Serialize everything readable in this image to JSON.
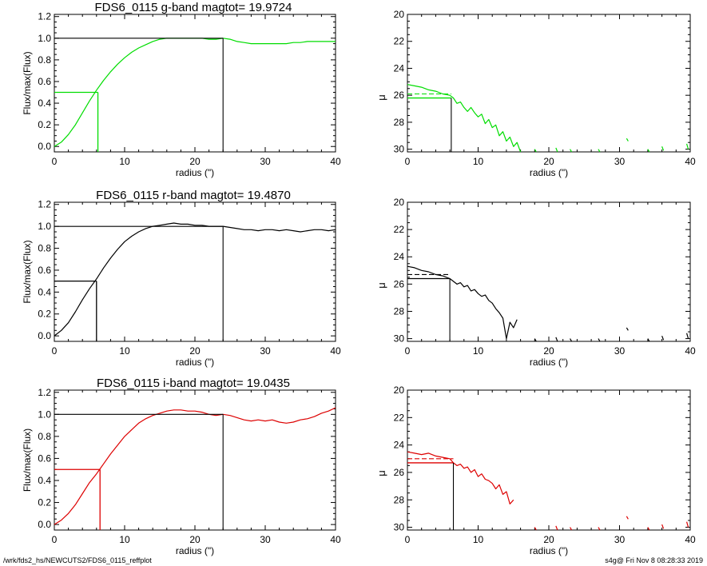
{
  "footer": {
    "path": "/wrk/fds2_hs/NEWCUTS2/FDS6_0115_reffplot",
    "stamp": "s4g@  Fri Nov  8 08:28:33 2019"
  },
  "colors": {
    "g": "#00dd00",
    "r": "#000000",
    "i": "#dd0000",
    "frame": "#000000"
  },
  "chart_data": [
    {
      "type": "line",
      "band": "g",
      "title": "FDS6_0115 g-band  magtot=     19.9724",
      "xlabel": "radius (\")",
      "ylabel": "Flux/max(Flux)",
      "xlim": [
        0,
        40
      ],
      "ylim": [
        -0.05,
        1.22
      ],
      "xticks": [
        "0",
        "10",
        "20",
        "30",
        "40"
      ],
      "yticks": [
        "0.0",
        "0.2",
        "0.4",
        "0.6",
        "0.8",
        "1.0",
        "1.2"
      ],
      "half_light_radius": 6.2,
      "total_radius": 24,
      "series": [
        {
          "x": [
            0,
            1,
            2,
            3,
            4,
            5,
            6,
            7,
            8,
            9,
            10,
            11,
            12,
            13,
            14,
            15,
            16,
            17,
            18,
            19,
            20,
            21,
            22,
            23,
            24,
            25,
            26,
            27,
            28,
            29,
            30,
            31,
            32,
            33,
            34,
            35,
            36,
            37,
            38,
            39,
            40
          ],
          "y": [
            0,
            0.04,
            0.11,
            0.2,
            0.31,
            0.42,
            0.52,
            0.61,
            0.69,
            0.76,
            0.82,
            0.87,
            0.91,
            0.94,
            0.97,
            0.99,
            1.0,
            1.0,
            1.0,
            1.0,
            1.0,
            1.0,
            0.99,
            0.99,
            1.0,
            0.99,
            0.97,
            0.96,
            0.95,
            0.95,
            0.95,
            0.95,
            0.95,
            0.95,
            0.96,
            0.96,
            0.97,
            0.97,
            0.97,
            0.97,
            0.97
          ]
        }
      ]
    },
    {
      "type": "line",
      "band": "g",
      "xlabel": "radius (\")",
      "ylabel": "μ",
      "xlim": [
        0,
        40
      ],
      "ylim": [
        30.2,
        20
      ],
      "inverted": true,
      "xticks": [
        "0",
        "10",
        "20",
        "30",
        "40"
      ],
      "yticks": [
        "20",
        "22",
        "24",
        "26",
        "28",
        "30"
      ],
      "half_light_radius": 6.2,
      "mu_eff": 26.2,
      "mu_mean": 25.9,
      "series": [
        {
          "x": [
            0,
            1,
            2,
            3,
            4,
            5,
            6,
            6.5,
            7,
            7.5,
            8,
            8.5,
            9,
            9.5,
            10,
            10.5,
            11,
            11.5,
            12,
            12.5,
            13,
            13.5,
            14,
            14.5,
            15,
            15.5,
            16
          ],
          "y": [
            25.2,
            25.3,
            25.4,
            25.6,
            25.7,
            25.9,
            26.0,
            26.2,
            26.6,
            26.5,
            26.9,
            27.2,
            26.9,
            27.3,
            27.6,
            27.4,
            28.1,
            27.8,
            28.4,
            28.2,
            29.0,
            28.7,
            29.4,
            29.1,
            29.8,
            29.5,
            30.2
          ]
        }
      ]
    },
    {
      "type": "line",
      "band": "r",
      "title": "FDS6_0115 r-band  magtot=     19.4870",
      "xlabel": "radius (\")",
      "ylabel": "Flux/max(Flux)",
      "xlim": [
        0,
        40
      ],
      "ylim": [
        -0.05,
        1.22
      ],
      "xticks": [
        "0",
        "10",
        "20",
        "30",
        "40"
      ],
      "yticks": [
        "0.0",
        "0.2",
        "0.4",
        "0.6",
        "0.8",
        "1.0",
        "1.2"
      ],
      "half_light_radius": 6.0,
      "total_radius": 24,
      "series": [
        {
          "x": [
            0,
            1,
            2,
            3,
            4,
            5,
            6,
            7,
            8,
            9,
            10,
            11,
            12,
            13,
            14,
            15,
            16,
            17,
            18,
            19,
            20,
            21,
            22,
            23,
            24,
            25,
            26,
            27,
            28,
            29,
            30,
            31,
            32,
            33,
            34,
            35,
            36,
            37,
            38,
            39,
            40
          ],
          "y": [
            0,
            0.05,
            0.12,
            0.22,
            0.33,
            0.43,
            0.52,
            0.62,
            0.71,
            0.79,
            0.86,
            0.91,
            0.95,
            0.98,
            1.0,
            1.01,
            1.02,
            1.03,
            1.02,
            1.02,
            1.01,
            1.01,
            1.0,
            1.0,
            1.0,
            0.99,
            0.98,
            0.97,
            0.97,
            0.96,
            0.97,
            0.97,
            0.96,
            0.97,
            0.96,
            0.95,
            0.96,
            0.97,
            0.97,
            0.96,
            0.97
          ]
        }
      ]
    },
    {
      "type": "line",
      "band": "r",
      "xlabel": "radius (\")",
      "ylabel": "μ",
      "xlim": [
        0,
        40
      ],
      "ylim": [
        30.2,
        20
      ],
      "inverted": true,
      "xticks": [
        "0",
        "10",
        "20",
        "30",
        "40"
      ],
      "yticks": [
        "20",
        "22",
        "24",
        "26",
        "28",
        "30"
      ],
      "half_light_radius": 6.0,
      "mu_eff": 25.6,
      "mu_mean": 25.3,
      "series": [
        {
          "x": [
            0,
            1,
            2,
            3,
            4,
            5,
            6,
            6.5,
            7,
            7.5,
            8,
            8.5,
            9,
            9.5,
            10,
            10.5,
            11,
            11.5,
            12,
            12.5,
            13,
            13.5,
            14,
            14.5,
            15,
            15.5
          ],
          "y": [
            24.7,
            24.8,
            25.0,
            25.1,
            25.3,
            25.4,
            25.6,
            25.8,
            26.0,
            25.9,
            26.2,
            26.1,
            26.5,
            26.4,
            26.7,
            26.9,
            26.8,
            27.2,
            27.4,
            27.8,
            28.1,
            28.5,
            30.0,
            28.8,
            29.2,
            28.6
          ]
        }
      ]
    },
    {
      "type": "line",
      "band": "i",
      "title": "FDS6_0115 i-band  magtot=     19.0435",
      "xlabel": "radius (\")",
      "ylabel": "Flux/max(Flux)",
      "xlim": [
        0,
        40
      ],
      "ylim": [
        -0.05,
        1.22
      ],
      "xticks": [
        "0",
        "10",
        "20",
        "30",
        "40"
      ],
      "yticks": [
        "0.0",
        "0.2",
        "0.4",
        "0.6",
        "0.8",
        "1.0",
        "1.2"
      ],
      "half_light_radius": 6.5,
      "total_radius": 24,
      "series": [
        {
          "x": [
            0,
            1,
            2,
            3,
            4,
            5,
            6,
            7,
            8,
            9,
            10,
            11,
            12,
            13,
            14,
            15,
            16,
            17,
            18,
            19,
            20,
            21,
            22,
            23,
            24,
            25,
            26,
            27,
            28,
            29,
            30,
            31,
            32,
            33,
            34,
            35,
            36,
            37,
            38,
            39,
            40
          ],
          "y": [
            0,
            0.04,
            0.1,
            0.18,
            0.28,
            0.38,
            0.46,
            0.55,
            0.64,
            0.72,
            0.8,
            0.86,
            0.92,
            0.96,
            0.99,
            1.01,
            1.03,
            1.04,
            1.04,
            1.03,
            1.03,
            1.02,
            1.0,
            0.99,
            1.0,
            0.99,
            0.97,
            0.95,
            0.94,
            0.95,
            0.94,
            0.95,
            0.93,
            0.92,
            0.93,
            0.95,
            0.96,
            0.98,
            1.01,
            1.03,
            1.06
          ]
        }
      ]
    },
    {
      "type": "line",
      "band": "i",
      "xlabel": "radius (\")",
      "ylabel": "μ",
      "xlim": [
        0,
        40
      ],
      "ylim": [
        30.2,
        20
      ],
      "inverted": true,
      "xticks": [
        "0",
        "10",
        "20",
        "30",
        "40"
      ],
      "yticks": [
        "20",
        "22",
        "24",
        "26",
        "28",
        "30"
      ],
      "half_light_radius": 6.5,
      "mu_eff": 25.3,
      "mu_mean": 25.0,
      "series": [
        {
          "x": [
            0,
            1,
            2,
            3,
            4,
            5,
            6,
            6.5,
            7,
            7.5,
            8,
            8.5,
            9,
            9.5,
            10,
            10.5,
            11,
            11.5,
            12,
            12.5,
            13,
            13.5,
            14,
            14.5,
            15
          ],
          "y": [
            24.5,
            24.6,
            24.7,
            24.6,
            24.8,
            24.9,
            25.0,
            25.3,
            25.5,
            25.4,
            25.7,
            25.6,
            26.0,
            25.8,
            26.3,
            26.1,
            26.5,
            26.6,
            26.8,
            27.2,
            26.9,
            27.6,
            27.4,
            28.3,
            28.0
          ]
        }
      ]
    }
  ]
}
